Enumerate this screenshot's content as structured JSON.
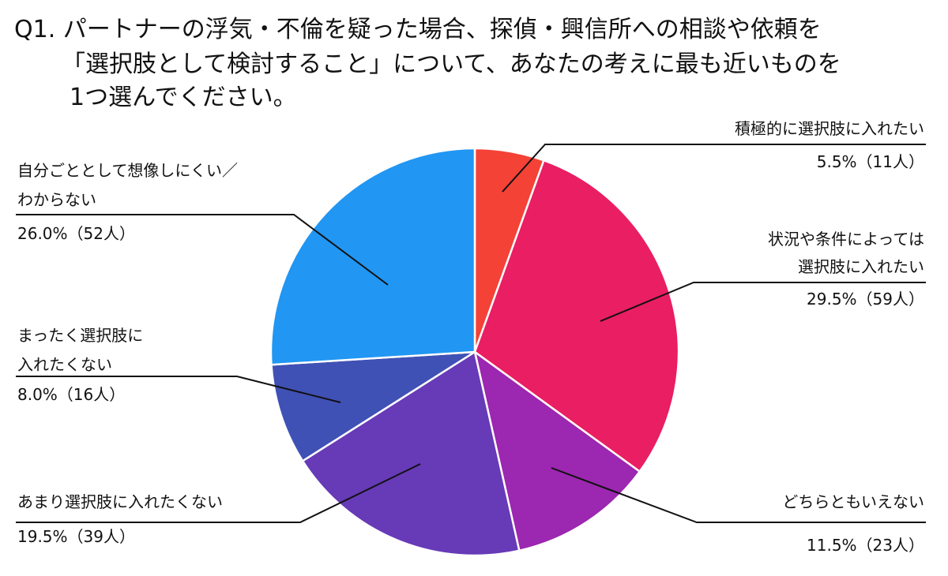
{
  "chart_data": {
    "type": "pie",
    "title": "Q1. パートナーの浮気・不倫を疑った場合、探偵・興信所への相談や依頼を「選択肢として検討すること」について、あなたの考えに最も近いものを1つ選んでください。",
    "title_lines": [
      "Q1. パートナーの浮気・不倫を疑った場合、探偵・興信所への相談や依頼を",
      "「選択肢として検討すること」について、あなたの考えに最も近いものを",
      "1つ選んでください。"
    ],
    "start_angle_deg": 0,
    "direction": "clockwise",
    "slices": [
      {
        "label": "積極的に選択肢に入れたい",
        "label_lines": [
          "積極的に選択肢に入れたい"
        ],
        "value": 5.5,
        "count": 11,
        "value_text": "5.5%（11人）",
        "color": "#F44236"
      },
      {
        "label": "状況や条件によっては選択肢に入れたい",
        "label_lines": [
          "状況や条件によっては",
          "選択肢に入れたい"
        ],
        "value": 29.5,
        "count": 59,
        "value_text": "29.5%（59人）",
        "color": "#E91E63"
      },
      {
        "label": "どちらともいえない",
        "label_lines": [
          "どちらともいえない"
        ],
        "value": 11.5,
        "count": 23,
        "value_text": "11.5%（23人）",
        "color": "#9C27B0"
      },
      {
        "label": "あまり選択肢に入れたくない",
        "label_lines": [
          "あまり選択肢に入れたくない"
        ],
        "value": 19.5,
        "count": 39,
        "value_text": "19.5%（39人）",
        "color": "#673AB7"
      },
      {
        "label": "まったく選択肢に入れたくない",
        "label_lines": [
          "まったく選択肢に",
          "入れたくない"
        ],
        "value": 8.0,
        "count": 16,
        "value_text": "8.0%（16人）",
        "color": "#3F51B5"
      },
      {
        "label": "自分ごととして想像しにくい／わからない",
        "label_lines": [
          "自分ごととして想像しにくい／",
          "わからない"
        ],
        "value": 26.0,
        "count": 52,
        "value_text": "26.0%（52人）",
        "color": "#2196F3"
      }
    ]
  }
}
